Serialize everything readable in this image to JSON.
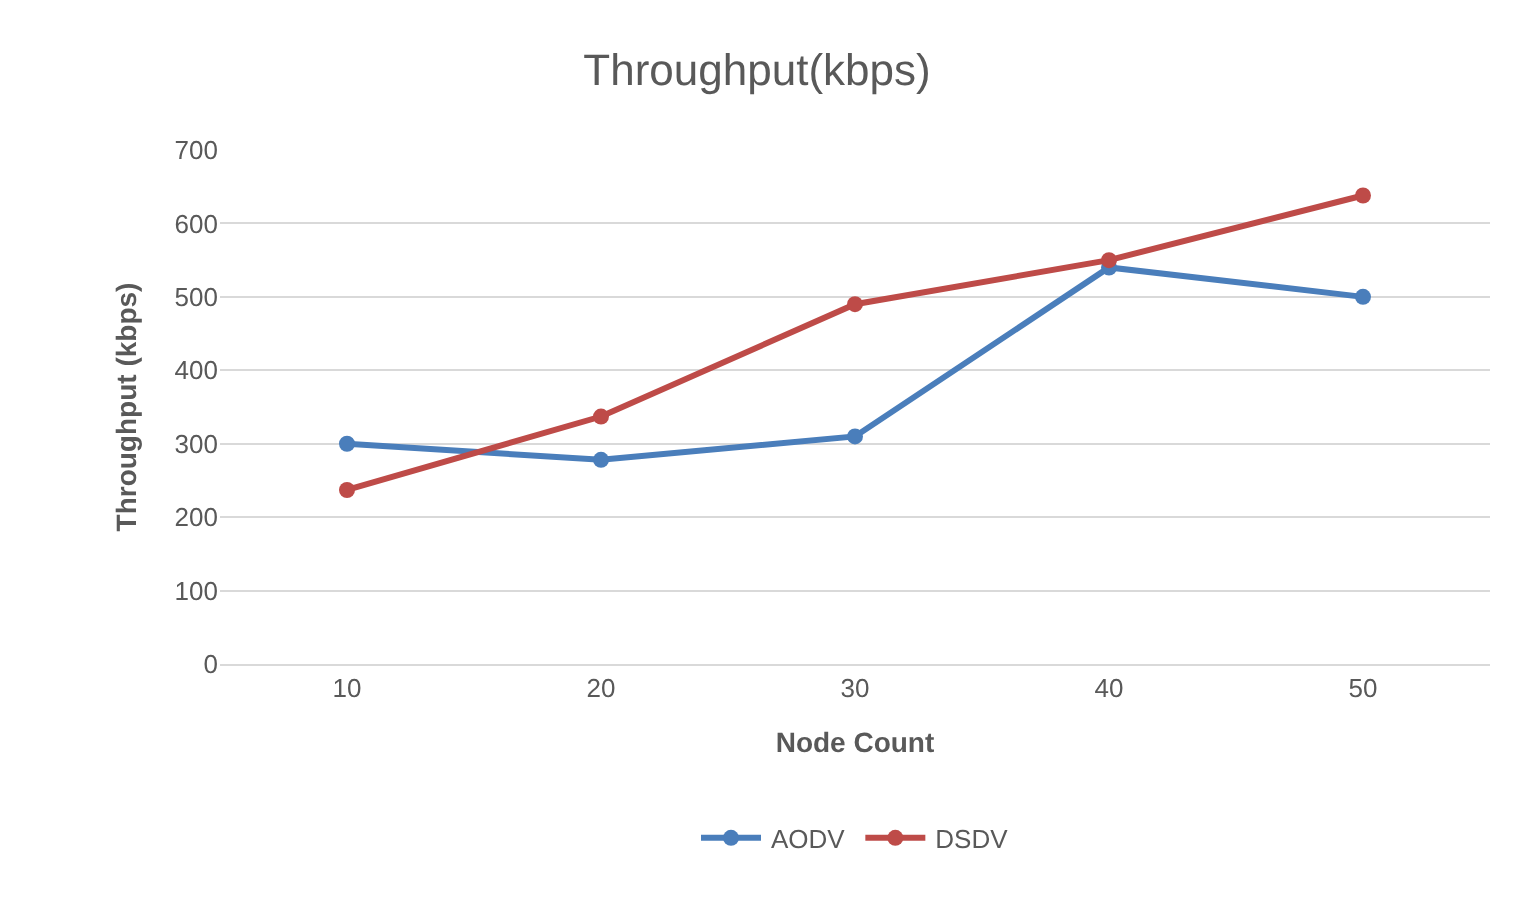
{
  "chart_data": {
    "type": "line",
    "title": "Throughput(kbps)",
    "xlabel": "Node Count",
    "ylabel": "Throughput (kbps)",
    "categories": [
      "10",
      "20",
      "30",
      "40",
      "50"
    ],
    "series": [
      {
        "name": "AODV",
        "color": "#4a7ebb",
        "values": [
          300,
          278,
          310,
          540,
          500
        ]
      },
      {
        "name": "DSDV",
        "color": "#be4b48",
        "values": [
          237,
          337,
          490,
          550,
          638
        ]
      }
    ],
    "ylim": [
      0,
      700
    ],
    "yticks": [
      0,
      100,
      200,
      300,
      400,
      500,
      600,
      700
    ],
    "grid": "y",
    "legend": "bottom",
    "marker": "circle",
    "line_style": "solid"
  }
}
